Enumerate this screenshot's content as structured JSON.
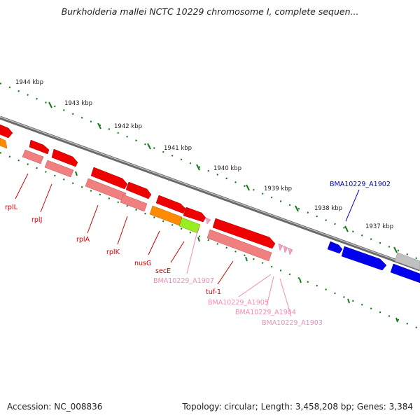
{
  "title": "Burkholderia mallei NCTC 10229 chromosome I, complete sequen...",
  "footer": {
    "accession": "Accession: NC_008836",
    "summary": "Topology: circular; Length: 3,458,208 bp; Genes: 3,384"
  },
  "ruler": {
    "ticks": [
      "1944 kbp",
      "1943 kbp",
      "1942 kbp",
      "1941 kbp",
      "1940 kbp",
      "1939 kbp",
      "1938 kbp",
      "1937 kbp"
    ]
  },
  "gene_labels": [
    {
      "text": "rplL",
      "color": "#cc0000"
    },
    {
      "text": "rplJ",
      "color": "#cc0000"
    },
    {
      "text": "rplA",
      "color": "#cc0000"
    },
    {
      "text": "rplK",
      "color": "#cc0000"
    },
    {
      "text": "nusG",
      "color": "#cc0000"
    },
    {
      "text": "secE",
      "color": "#cc0000"
    },
    {
      "text": "BMA10229_A1907",
      "color": "#f08cb4"
    },
    {
      "text": "tuf-1",
      "color": "#cc0000"
    },
    {
      "text": "BMA10229_A1905",
      "color": "#f08cb4"
    },
    {
      "text": "BMA10229_A1904",
      "color": "#f08cb4"
    },
    {
      "text": "BMA10229_A1903",
      "color": "#f08cb4"
    },
    {
      "text": "BMA10229_A1902",
      "color": "#0000cc"
    }
  ],
  "colors": {
    "backbone": "#808080",
    "ribosomal_gene": "#ee0000",
    "ribosomal_gene_light": "#f08080",
    "nusG": "#ff8c00",
    "secE": "#99ee22",
    "trna": "#f4a0c0",
    "other_gene": "#0000ee",
    "hypothetical": "#c0c0c0",
    "ruler_tick": "#1a7a1a"
  }
}
